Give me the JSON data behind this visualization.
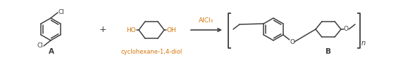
{
  "bg_color": "#ffffff",
  "line_color": "#3d3d3d",
  "orange_color": "#d4760a",
  "label_A": "A",
  "label_B": "B",
  "label_n": "n",
  "label_plus": "+",
  "label_reagent": "AlCl₃",
  "label_diol": "cyclohexane-1,4-diol",
  "figsize": [
    5.72,
    0.89
  ],
  "dpi": 100
}
